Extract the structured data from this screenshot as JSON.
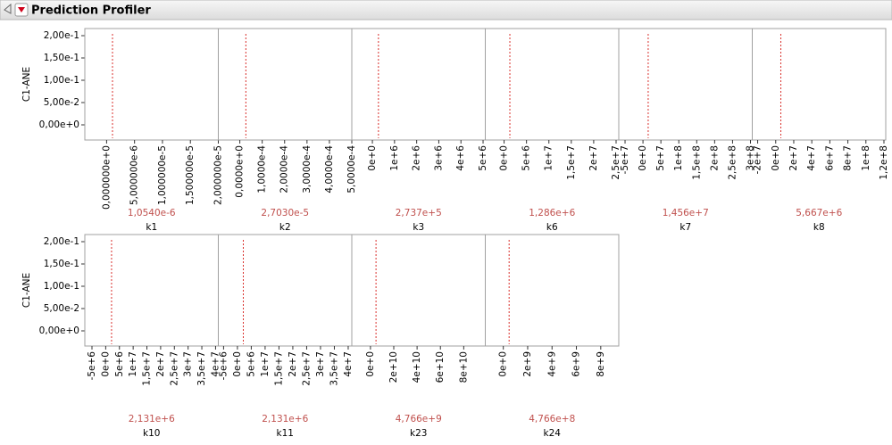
{
  "header": {
    "title": "Prediction Profiler"
  },
  "response": "C1-ANE",
  "rows": [
    {
      "ylim": [
        -0.034,
        0.216
      ],
      "yticks": [
        {
          "value": 0,
          "label": "0,00e+0"
        },
        {
          "value": 0.05,
          "label": "5,00e-2"
        },
        {
          "value": 0.1,
          "label": "1,00e-1"
        },
        {
          "value": 0.15,
          "label": "1,50e-1"
        },
        {
          "value": 0.2,
          "label": "2,00e-1"
        }
      ],
      "panels": [
        {
          "factor": "k1",
          "current": {
            "value": 1.054e-06,
            "label": "1,0540e-6"
          },
          "xlim": [
            -3.9e-06,
            2e-05
          ],
          "xticks": [
            {
              "value": 0,
              "label": "0,000000e+0"
            },
            {
              "value": 5e-06,
              "label": "5,000000e-6"
            },
            {
              "value": 1e-05,
              "label": "1,000000e-5"
            },
            {
              "value": 1.5e-05,
              "label": "1,500000e-5"
            },
            {
              "value": 2e-05,
              "label": "2,000000e-5"
            }
          ]
        },
        {
          "factor": "k2",
          "current": {
            "value": 2.703e-05,
            "label": "2,7030e-5"
          },
          "xlim": [
            -9.6e-05,
            0.0005
          ],
          "xticks": [
            {
              "value": 0,
              "label": "0,0000e+0"
            },
            {
              "value": 0.0001,
              "label": "1,0000e-4"
            },
            {
              "value": 0.0002,
              "label": "2,0000e-4"
            },
            {
              "value": 0.0003,
              "label": "3,0000e-4"
            },
            {
              "value": 0.0004,
              "label": "4,0000e-4"
            },
            {
              "value": 0.0005,
              "label": "5,0000e-4"
            }
          ]
        },
        {
          "factor": "k3",
          "current": {
            "value": 273700,
            "label": "2,737e+5"
          },
          "xlim": [
            -930000,
            5100000
          ],
          "xticks": [
            {
              "value": 0,
              "label": "0e+0"
            },
            {
              "value": 1000000,
              "label": "1e+6"
            },
            {
              "value": 2000000,
              "label": "2e+6"
            },
            {
              "value": 3000000,
              "label": "3e+6"
            },
            {
              "value": 4000000,
              "label": "4e+6"
            },
            {
              "value": 5000000,
              "label": "5e+6"
            }
          ]
        },
        {
          "factor": "k6",
          "current": {
            "value": 1286000,
            "label": "1,286e+6"
          },
          "xlim": [
            -4200000,
            25600000
          ],
          "xticks": [
            {
              "value": 0,
              "label": "0e+0"
            },
            {
              "value": 5000000,
              "label": "5e+6"
            },
            {
              "value": 10000000,
              "label": "1e+7"
            },
            {
              "value": 15000000,
              "label": "1,5e+7"
            },
            {
              "value": 20000000,
              "label": "2e+7"
            },
            {
              "value": 25000000,
              "label": "2,5e+7"
            }
          ]
        },
        {
          "factor": "k7",
          "current": {
            "value": 14560000,
            "label": "1,456e+7"
          },
          "xlim": [
            -67500000,
            305000000
          ],
          "xticks": [
            {
              "value": -50000000,
              "label": "-5e+7"
            },
            {
              "value": 0,
              "label": "0e+0"
            },
            {
              "value": 50000000,
              "label": "5e+7"
            },
            {
              "value": 100000000,
              "label": "1e+8"
            },
            {
              "value": 150000000,
              "label": "1,5e+8"
            },
            {
              "value": 200000000,
              "label": "2e+8"
            },
            {
              "value": 250000000,
              "label": "2,5e+8"
            },
            {
              "value": 300000000,
              "label": "3e+8"
            }
          ]
        },
        {
          "factor": "k8",
          "current": {
            "value": 5667000,
            "label": "5,667e+6"
          },
          "xlim": [
            -26000000,
            122000000
          ],
          "xticks": [
            {
              "value": -20000000,
              "label": "-2e+7"
            },
            {
              "value": 0,
              "label": "0e+0"
            },
            {
              "value": 20000000,
              "label": "2e+7"
            },
            {
              "value": 40000000,
              "label": "4e+7"
            },
            {
              "value": 60000000,
              "label": "6e+7"
            },
            {
              "value": 80000000,
              "label": "8e+7"
            },
            {
              "value": 100000000,
              "label": "1e+8"
            },
            {
              "value": 120000000,
              "label": "1,2e+8"
            }
          ]
        }
      ]
    },
    {
      "ylim": [
        -0.034,
        0.216
      ],
      "yticks": [
        {
          "value": 0,
          "label": "0,00e+0"
        },
        {
          "value": 0.05,
          "label": "5,00e-2"
        },
        {
          "value": 0.1,
          "label": "1,00e-1"
        },
        {
          "value": 0.15,
          "label": "1,50e-1"
        },
        {
          "value": 0.2,
          "label": "2,00e-1"
        }
      ],
      "panels": [
        {
          "factor": "k10",
          "current": {
            "value": 2131000,
            "label": "2,131e+6"
          },
          "xlim": [
            -7600000,
            41000000
          ],
          "xticks": [
            {
              "value": -5000000,
              "label": "-5e+6"
            },
            {
              "value": 0,
              "label": "0e+0"
            },
            {
              "value": 5000000,
              "label": "5e+6"
            },
            {
              "value": 10000000,
              "label": "1e+7"
            },
            {
              "value": 15000000,
              "label": "1,5e+7"
            },
            {
              "value": 20000000,
              "label": "2e+7"
            },
            {
              "value": 25000000,
              "label": "2,5e+7"
            },
            {
              "value": 30000000,
              "label": "3e+7"
            },
            {
              "value": 35000000,
              "label": "3,5e+7"
            },
            {
              "value": 40000000,
              "label": "4e+7"
            }
          ]
        },
        {
          "factor": "k11",
          "current": {
            "value": 2131000,
            "label": "2,131e+6"
          },
          "xlim": [
            -6900000,
            41300000
          ],
          "xticks": [
            {
              "value": -5000000,
              "label": "-5e+6"
            },
            {
              "value": 0,
              "label": "0e+0"
            },
            {
              "value": 5000000,
              "label": "5e+6"
            },
            {
              "value": 10000000,
              "label": "1e+7"
            },
            {
              "value": 15000000,
              "label": "1,5e+7"
            },
            {
              "value": 20000000,
              "label": "2e+7"
            },
            {
              "value": 25000000,
              "label": "2,5e+7"
            },
            {
              "value": 30000000,
              "label": "3e+7"
            },
            {
              "value": 35000000,
              "label": "3,5e+7"
            },
            {
              "value": 40000000,
              "label": "4e+7"
            }
          ]
        },
        {
          "factor": "k23",
          "current": {
            "value": 4766000000,
            "label": "4,766e+9"
          },
          "xlim": [
            -16000000000,
            98500000000
          ],
          "xticks": [
            {
              "value": 0,
              "label": "0e+0"
            },
            {
              "value": 20000000000,
              "label": "2e+10"
            },
            {
              "value": 40000000000,
              "label": "4e+10"
            },
            {
              "value": 60000000000,
              "label": "6e+10"
            },
            {
              "value": 80000000000,
              "label": "8e+10"
            }
          ]
        },
        {
          "factor": "k24",
          "current": {
            "value": 476600000,
            "label": "4,766e+8"
          },
          "xlim": [
            -1480000000,
            9480000000
          ],
          "xticks": [
            {
              "value": 0,
              "label": "0e+0"
            },
            {
              "value": 2000000000,
              "label": "2e+9"
            },
            {
              "value": 4000000000,
              "label": "4e+9"
            },
            {
              "value": 6000000000,
              "label": "6e+9"
            },
            {
              "value": 8000000000,
              "label": "8e+9"
            }
          ]
        }
      ]
    }
  ]
}
